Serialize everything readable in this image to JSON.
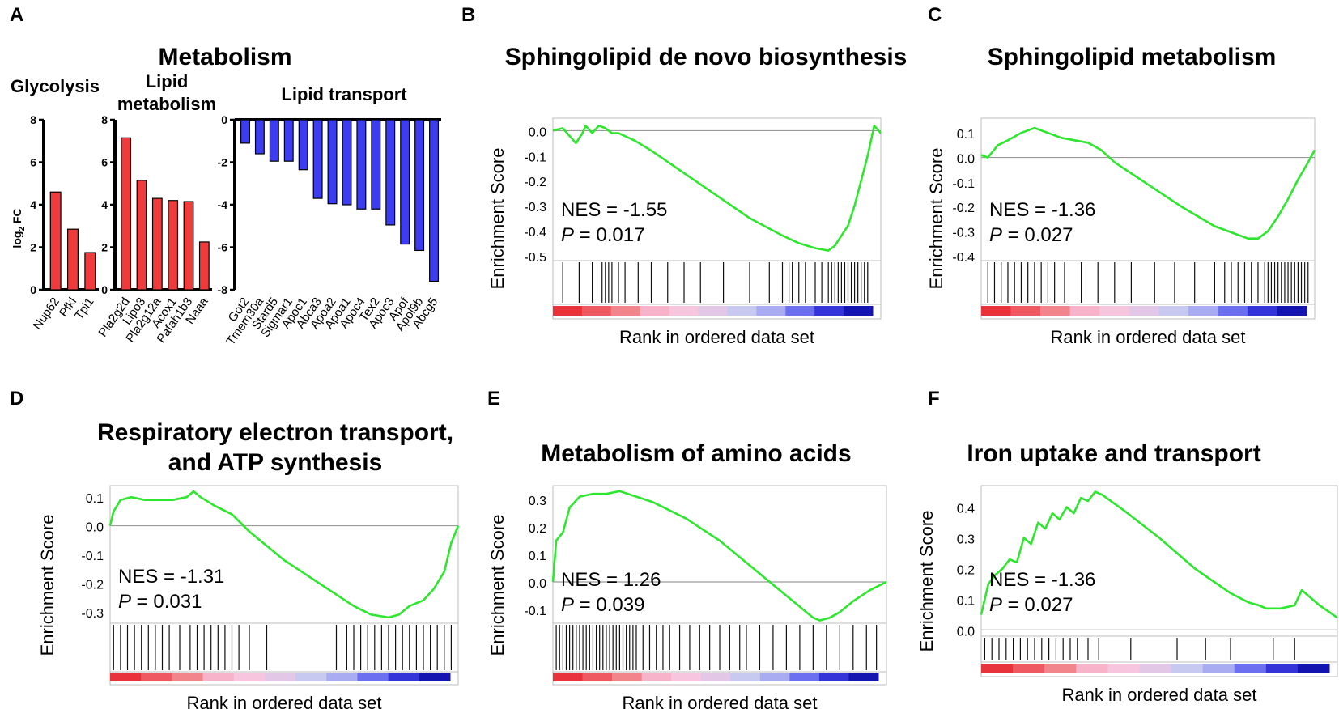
{
  "panel_a": {
    "letter": "A",
    "title": "Metabolism",
    "ylabel_main": "log",
    "ylabel_sub": "2",
    "ylabel_tail": " FC"
  },
  "chart_data": [
    {
      "id": "glycolysis",
      "type": "bar",
      "title": "Glycolysis",
      "categories": [
        "Nup62",
        "Pfkl",
        "Tpi1"
      ],
      "values": [
        4.6,
        2.85,
        1.75
      ],
      "ylim": [
        0,
        8
      ],
      "yticks": [
        0,
        2,
        4,
        6,
        8
      ],
      "ylabel": "log2 FC",
      "color": "#ef3b3b"
    },
    {
      "id": "lipid_metabolism",
      "type": "bar",
      "title_lines": [
        "Lipid",
        "metabolism"
      ],
      "categories": [
        "Pla2g2d",
        "Lipo3",
        "Pla2g12a",
        "Acox1",
        "Pafah1b3",
        "Naaa"
      ],
      "values": [
        7.15,
        5.15,
        4.3,
        4.2,
        4.15,
        2.25
      ],
      "ylim": [
        0,
        8
      ],
      "yticks": [
        0,
        2,
        4,
        6,
        8
      ],
      "color": "#ef3b3b"
    },
    {
      "id": "lipid_transport",
      "type": "bar",
      "title": "Lipid transport",
      "categories": [
        "Got2",
        "Tmem30a",
        "Stard5",
        "Sigmar1",
        "Apoc1",
        "Abca3",
        "Apoa2",
        "Apoa1",
        "Apoc4",
        "Tex2",
        "Apoc3",
        "Apof",
        "Apol9b",
        "Abcg5"
      ],
      "values": [
        -1.1,
        -1.6,
        -1.95,
        -1.95,
        -2.35,
        -3.7,
        -3.95,
        -4.0,
        -4.2,
        -4.2,
        -4.95,
        -5.85,
        -6.15,
        -7.6
      ],
      "ylim": [
        -8,
        0
      ],
      "yticks": [
        0,
        -2,
        -4,
        -6,
        -8
      ],
      "color": "#3c3cf0"
    },
    {
      "id": "B",
      "type": "line",
      "letter": "B",
      "title": "Sphingolipid de novo biosynthesis",
      "ylabel": "Enrichment Score",
      "xlabel": "Rank in ordered data set",
      "yticks": [
        0.0,
        -0.1,
        -0.2,
        -0.3,
        -0.4,
        -0.5
      ],
      "ytick_labels": [
        "0.0",
        "-0.1",
        "-0.2",
        "-0.3",
        "-0.4",
        "-0.5"
      ],
      "ylim": [
        -0.52,
        0.05
      ],
      "nes_text": "NES = -1.55",
      "p_label": "P",
      "p_value_text": " = 0.017",
      "x": [
        0,
        0.03,
        0.05,
        0.07,
        0.09,
        0.1,
        0.12,
        0.14,
        0.16,
        0.18,
        0.2,
        0.25,
        0.3,
        0.4,
        0.5,
        0.6,
        0.7,
        0.75,
        0.8,
        0.84,
        0.86,
        0.88,
        0.9,
        0.92,
        0.94,
        0.96,
        0.98,
        1.0
      ],
      "y": [
        0.0,
        0.01,
        -0.02,
        -0.05,
        -0.01,
        0.02,
        -0.01,
        0.02,
        0.01,
        -0.01,
        -0.01,
        -0.04,
        -0.08,
        -0.17,
        -0.26,
        -0.35,
        -0.42,
        -0.45,
        -0.47,
        -0.48,
        -0.46,
        -0.42,
        -0.38,
        -0.3,
        -0.2,
        -0.1,
        0.02,
        -0.01
      ],
      "hits": [
        0.03,
        0.08,
        0.12,
        0.15,
        0.16,
        0.17,
        0.18,
        0.2,
        0.22,
        0.26,
        0.3,
        0.35,
        0.4,
        0.45,
        0.52,
        0.6,
        0.66,
        0.7,
        0.72,
        0.73,
        0.75,
        0.77,
        0.8,
        0.82,
        0.84,
        0.85,
        0.86,
        0.87,
        0.88,
        0.89,
        0.9,
        0.91,
        0.92,
        0.93,
        0.94,
        0.95,
        0.96
      ]
    },
    {
      "id": "C",
      "type": "line",
      "letter": "C",
      "title": "Sphingolipid metabolism",
      "ylabel": "Enrichment Score",
      "xlabel": "Rank in ordered data set",
      "yticks": [
        0.1,
        0.0,
        -0.1,
        -0.2,
        -0.3,
        -0.4
      ],
      "ytick_labels": [
        "0.1",
        "0.0",
        "-0.1",
        "-0.2",
        "-0.3",
        "-0.4"
      ],
      "ylim": [
        -0.42,
        0.16
      ],
      "nes_text": "NES = -1.36",
      "p_label": "P",
      "p_value_text": " = 0.027",
      "x": [
        0,
        0.02,
        0.05,
        0.08,
        0.12,
        0.16,
        0.2,
        0.24,
        0.28,
        0.32,
        0.36,
        0.4,
        0.5,
        0.6,
        0.7,
        0.76,
        0.8,
        0.83,
        0.86,
        0.89,
        0.92,
        0.95,
        0.98,
        1.0
      ],
      "y": [
        0.01,
        0.0,
        0.05,
        0.07,
        0.1,
        0.12,
        0.1,
        0.08,
        0.07,
        0.06,
        0.03,
        -0.02,
        -0.11,
        -0.2,
        -0.28,
        -0.31,
        -0.33,
        -0.33,
        -0.3,
        -0.24,
        -0.17,
        -0.09,
        -0.02,
        0.03
      ],
      "hits": [
        0.02,
        0.04,
        0.06,
        0.08,
        0.1,
        0.12,
        0.14,
        0.16,
        0.18,
        0.2,
        0.22,
        0.25,
        0.3,
        0.35,
        0.4,
        0.45,
        0.52,
        0.58,
        0.64,
        0.7,
        0.73,
        0.75,
        0.77,
        0.79,
        0.81,
        0.83,
        0.85,
        0.86,
        0.87,
        0.88,
        0.89,
        0.9,
        0.91,
        0.92,
        0.93,
        0.94,
        0.95,
        0.96,
        0.97,
        0.98
      ]
    },
    {
      "id": "D",
      "type": "line",
      "letter": "D",
      "title_lines": [
        "Respiratory electron transport,",
        "and ATP synthesis"
      ],
      "ylabel": "Enrichment Score",
      "xlabel": "Rank in ordered data set",
      "yticks": [
        0.1,
        0.0,
        -0.1,
        -0.2,
        -0.3
      ],
      "ytick_labels": [
        "0.1",
        "0.0",
        "-0.1",
        "-0.2",
        "-0.3"
      ],
      "ylim": [
        -0.34,
        0.14
      ],
      "nes_text": "NES = -1.31",
      "p_label": "P",
      "p_value_text": " = 0.031",
      "x": [
        0,
        0.01,
        0.03,
        0.06,
        0.1,
        0.14,
        0.18,
        0.22,
        0.24,
        0.26,
        0.3,
        0.35,
        0.4,
        0.5,
        0.6,
        0.7,
        0.75,
        0.8,
        0.83,
        0.86,
        0.9,
        0.93,
        0.96,
        0.98,
        1.0
      ],
      "y": [
        0.0,
        0.05,
        0.09,
        0.1,
        0.09,
        0.09,
        0.09,
        0.1,
        0.12,
        0.1,
        0.07,
        0.04,
        -0.02,
        -0.12,
        -0.2,
        -0.28,
        -0.31,
        -0.32,
        -0.31,
        -0.28,
        -0.26,
        -0.22,
        -0.16,
        -0.06,
        0.0
      ],
      "hits": [
        0.01,
        0.03,
        0.05,
        0.07,
        0.09,
        0.11,
        0.13,
        0.15,
        0.17,
        0.2,
        0.23,
        0.25,
        0.27,
        0.29,
        0.31,
        0.33,
        0.35,
        0.37,
        0.4,
        0.45,
        0.65,
        0.68,
        0.7,
        0.72,
        0.74,
        0.76,
        0.78,
        0.8,
        0.82,
        0.84,
        0.86,
        0.88,
        0.9,
        0.92,
        0.94,
        0.96,
        0.98
      ]
    },
    {
      "id": "E",
      "type": "line",
      "letter": "E",
      "title": "Metabolism of amino acids",
      "ylabel": "Enrichment Score",
      "xlabel": "Rank in ordered data set",
      "yticks": [
        0.3,
        0.2,
        0.1,
        0.0,
        -0.1
      ],
      "ytick_labels": [
        "0.3",
        "0.2",
        "0.1",
        "0.0",
        "-0.1"
      ],
      "ylim": [
        -0.15,
        0.35
      ],
      "nes_text": "NES = 1.26",
      "p_label": "P",
      "p_value_text": " = 0.039",
      "x": [
        0,
        0.01,
        0.03,
        0.05,
        0.08,
        0.12,
        0.16,
        0.2,
        0.25,
        0.3,
        0.4,
        0.5,
        0.6,
        0.7,
        0.78,
        0.8,
        0.83,
        0.86,
        0.9,
        0.95,
        1.0
      ],
      "y": [
        0.0,
        0.15,
        0.18,
        0.27,
        0.31,
        0.32,
        0.32,
        0.33,
        0.31,
        0.29,
        0.23,
        0.15,
        0.05,
        -0.05,
        -0.13,
        -0.14,
        -0.13,
        -0.11,
        -0.07,
        -0.03,
        0.0
      ],
      "hits": [
        0.01,
        0.02,
        0.03,
        0.04,
        0.05,
        0.06,
        0.07,
        0.08,
        0.09,
        0.1,
        0.11,
        0.12,
        0.13,
        0.14,
        0.15,
        0.16,
        0.17,
        0.18,
        0.19,
        0.2,
        0.21,
        0.22,
        0.23,
        0.24,
        0.25,
        0.27,
        0.29,
        0.31,
        0.33,
        0.35,
        0.38,
        0.41,
        0.44,
        0.47,
        0.5,
        0.53,
        0.56,
        0.58,
        0.62,
        0.66,
        0.7,
        0.74,
        0.78,
        0.82,
        0.86,
        0.9,
        0.94,
        0.97
      ]
    },
    {
      "id": "F",
      "type": "line",
      "letter": "F",
      "title": "Iron uptake and transport",
      "ylabel": "Enrichment Score",
      "xlabel": "Rank in ordered data set",
      "yticks": [
        0.4,
        0.3,
        0.2,
        0.1,
        0.0
      ],
      "ytick_labels": [
        "0.4",
        "0.3",
        "0.2",
        "0.1",
        "0.0"
      ],
      "ylim": [
        -0.02,
        0.47
      ],
      "nes_text": "NES = -1.36",
      "p_label": "P",
      "p_value_text": " = 0.027",
      "x": [
        0,
        0.02,
        0.04,
        0.06,
        0.08,
        0.1,
        0.12,
        0.14,
        0.16,
        0.18,
        0.2,
        0.22,
        0.24,
        0.26,
        0.28,
        0.3,
        0.32,
        0.34,
        0.4,
        0.5,
        0.6,
        0.7,
        0.75,
        0.78,
        0.8,
        0.84,
        0.88,
        0.9,
        0.95,
        1.0
      ],
      "y": [
        0.05,
        0.15,
        0.18,
        0.2,
        0.23,
        0.22,
        0.3,
        0.28,
        0.35,
        0.33,
        0.38,
        0.36,
        0.4,
        0.38,
        0.43,
        0.42,
        0.45,
        0.44,
        0.39,
        0.3,
        0.2,
        0.12,
        0.09,
        0.08,
        0.07,
        0.07,
        0.08,
        0.13,
        0.08,
        0.04
      ],
      "hits": [
        0.01,
        0.03,
        0.05,
        0.07,
        0.09,
        0.11,
        0.13,
        0.15,
        0.17,
        0.19,
        0.21,
        0.23,
        0.25,
        0.27,
        0.3,
        0.33,
        0.42,
        0.55,
        0.63,
        0.7,
        0.82,
        0.88
      ]
    }
  ]
}
